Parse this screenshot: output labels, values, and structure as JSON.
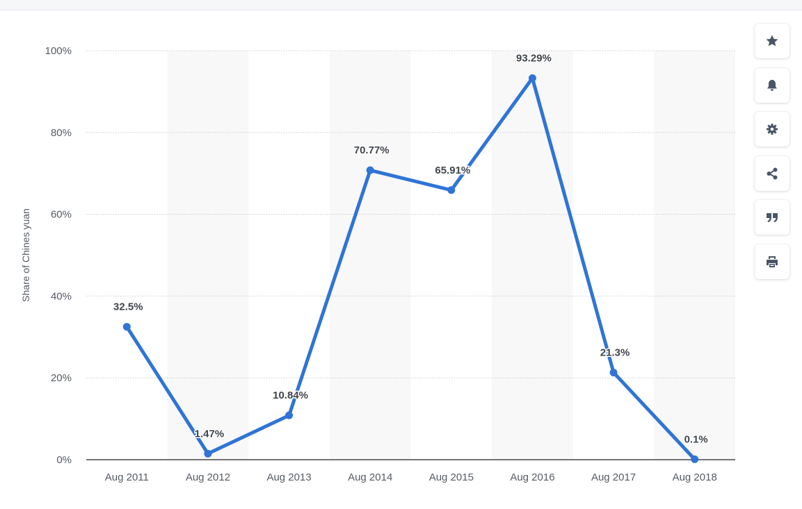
{
  "chart_data": {
    "type": "line",
    "categories": [
      "Aug 2011",
      "Aug 2012",
      "Aug 2013",
      "Aug 2014",
      "Aug 2015",
      "Aug 2016",
      "Aug 2017",
      "Aug 2018"
    ],
    "series": [
      {
        "values": [
          32.5,
          1.47,
          10.84,
          70.77,
          65.91,
          93.29,
          21.3,
          0.1
        ]
      }
    ],
    "data_labels": [
      "32.5%",
      "1.47%",
      "10.84%",
      "70.77%",
      "65.91%",
      "93.29%",
      "21.3%",
      "0.1%"
    ],
    "ylabel": "Share of Chines yuan",
    "ylim": [
      0,
      100
    ],
    "yticks": [
      0,
      20,
      40,
      60,
      80,
      100
    ],
    "ytick_labels": [
      "0%",
      "20%",
      "40%",
      "60%",
      "80%",
      "100%"
    ],
    "grid": true,
    "line_color": "#2f74d6"
  },
  "toolbar": {
    "buttons": [
      {
        "name": "favorite-button",
        "icon": "star-icon"
      },
      {
        "name": "notification-button",
        "icon": "bell-icon"
      },
      {
        "name": "settings-button",
        "icon": "gear-icon"
      },
      {
        "name": "share-button",
        "icon": "share-icon"
      },
      {
        "name": "cite-button",
        "icon": "quote-icon"
      },
      {
        "name": "print-button",
        "icon": "print-icon"
      }
    ],
    "icon_color": "#4a5668"
  }
}
